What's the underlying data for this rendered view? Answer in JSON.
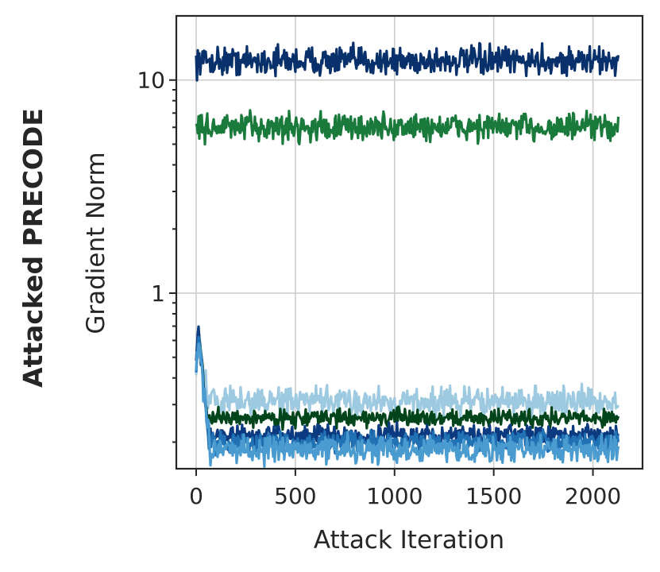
{
  "chart_data": {
    "type": "line",
    "row_title": "Attacked PRECODE",
    "xlabel": "Attack Iteration",
    "ylabel": "Gradient Norm",
    "yscale": "log",
    "xlim": [
      -100,
      2250
    ],
    "ylim": [
      0.15,
      20
    ],
    "xticks": [
      0,
      500,
      1000,
      1500,
      2000
    ],
    "xtick_labels": [
      "0",
      "500",
      "1000",
      "1500",
      "2000"
    ],
    "yticks": [
      1,
      10
    ],
    "ytick_labels": [
      "1",
      "10"
    ],
    "grid": true,
    "legend": "none",
    "x_end": 2130,
    "series": [
      {
        "color": "#08306b",
        "start": 12.3,
        "peak": 12.3,
        "plateau": 12.3,
        "noise": 0.05,
        "decay_end": 0
      },
      {
        "color": "#1a7a3c",
        "start": 6.0,
        "peak": 6.0,
        "plateau": 6.0,
        "noise": 0.05,
        "decay_end": 0
      },
      {
        "color": "#9ecae1",
        "start": 0.45,
        "peak": 0.6,
        "plateau": 0.31,
        "noise": 0.05,
        "decay_end": 60
      },
      {
        "color": "#00441b",
        "start": 0.45,
        "peak": 0.66,
        "plateau": 0.26,
        "noise": 0.03,
        "decay_end": 55
      },
      {
        "color": "#0b3a80",
        "start": 0.5,
        "peak": 0.7,
        "plateau": 0.215,
        "noise": 0.035,
        "decay_end": 60
      },
      {
        "color": "#2171b5",
        "start": 0.45,
        "peak": 0.65,
        "plateau": 0.2,
        "noise": 0.035,
        "decay_end": 65
      },
      {
        "color": "#4a9bcf",
        "start": 0.42,
        "peak": 0.6,
        "plateau": 0.185,
        "noise": 0.045,
        "decay_end": 70
      }
    ]
  }
}
